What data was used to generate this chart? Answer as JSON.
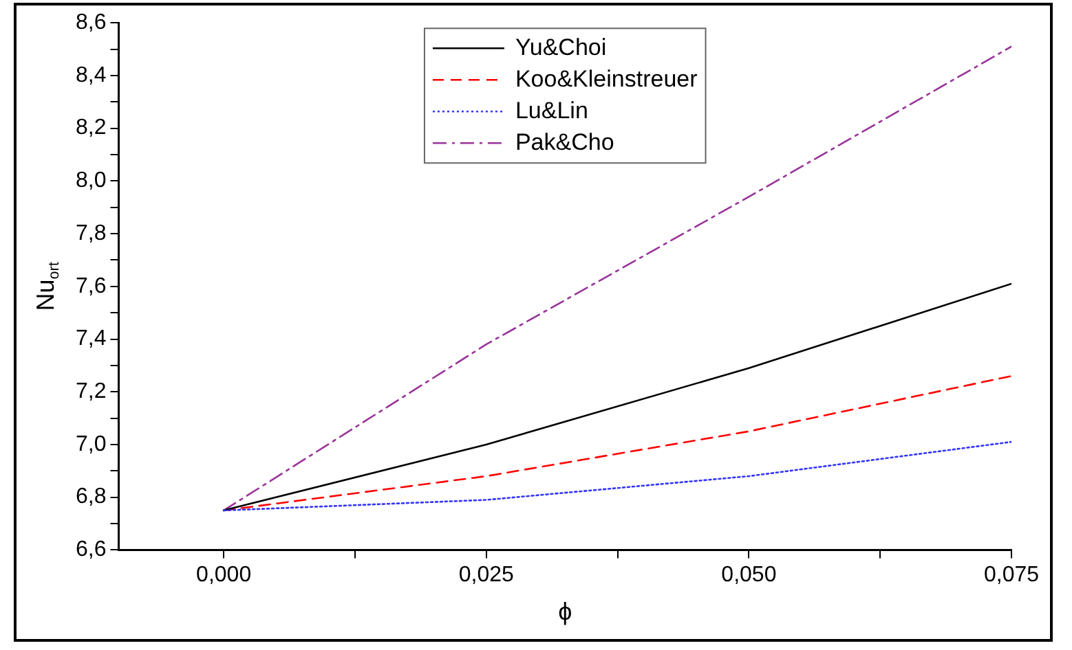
{
  "chart_data": {
    "type": "line",
    "xlabel": "ϕ",
    "ylabel": "Nu$_{ort}$",
    "x": [
      0,
      0.025,
      0.05,
      0.075
    ],
    "series": [
      {
        "name": "Yu&Choi",
        "color": "#000000",
        "line_style": "solid",
        "values": [
          6.75,
          7.0,
          7.29,
          7.61
        ]
      },
      {
        "name": "Koo&Kleinstreuer",
        "color": "#ff0000",
        "line_style": "dashed",
        "values": [
          6.75,
          6.88,
          7.05,
          7.26
        ]
      },
      {
        "name": "Lu&Lin",
        "color": "#3333ff",
        "line_style": "dotted",
        "values": [
          6.75,
          6.79,
          6.88,
          7.01
        ]
      },
      {
        "name": "Pak&Cho",
        "color": "#993399",
        "line_style": "dashdot",
        "values": [
          6.75,
          7.38,
          7.94,
          8.51
        ]
      }
    ],
    "xlim": [
      -0.01,
      0.075
    ],
    "xticks": [
      {
        "value": 0,
        "label": "0,000"
      },
      {
        "value": 0.0125,
        "label": null
      },
      {
        "value": 0.025,
        "label": "0,025"
      },
      {
        "value": 0.0375,
        "label": null
      },
      {
        "value": 0.05,
        "label": "0,050"
      },
      {
        "value": 0.0625,
        "label": null
      },
      {
        "value": 0.075,
        "label": "0,075"
      }
    ],
    "ylim": [
      6.6,
      8.6
    ],
    "yticks": [
      {
        "value": 6.6,
        "label": "6,6"
      },
      {
        "value": 6.7,
        "label": null
      },
      {
        "value": 6.8,
        "label": "6,8"
      },
      {
        "value": 6.9,
        "label": null
      },
      {
        "value": 7.0,
        "label": "7,0"
      },
      {
        "value": 7.1,
        "label": null
      },
      {
        "value": 7.2,
        "label": "7,2"
      },
      {
        "value": 7.3,
        "label": null
      },
      {
        "value": 7.4,
        "label": "7,4"
      },
      {
        "value": 7.5,
        "label": null
      },
      {
        "value": 7.6,
        "label": "7,6"
      },
      {
        "value": 7.7,
        "label": null
      },
      {
        "value": 7.8,
        "label": "7,8"
      },
      {
        "value": 7.9,
        "label": null
      },
      {
        "value": 8.0,
        "label": "8,0"
      },
      {
        "value": 8.1,
        "label": null
      },
      {
        "value": 8.2,
        "label": "8,2"
      },
      {
        "value": 8.3,
        "label": null
      },
      {
        "value": 8.4,
        "label": "8,4"
      },
      {
        "value": 8.5,
        "label": null
      },
      {
        "value": 8.6,
        "label": "8,6"
      }
    ],
    "grid": false,
    "legend": "top",
    "marker": "none"
  }
}
